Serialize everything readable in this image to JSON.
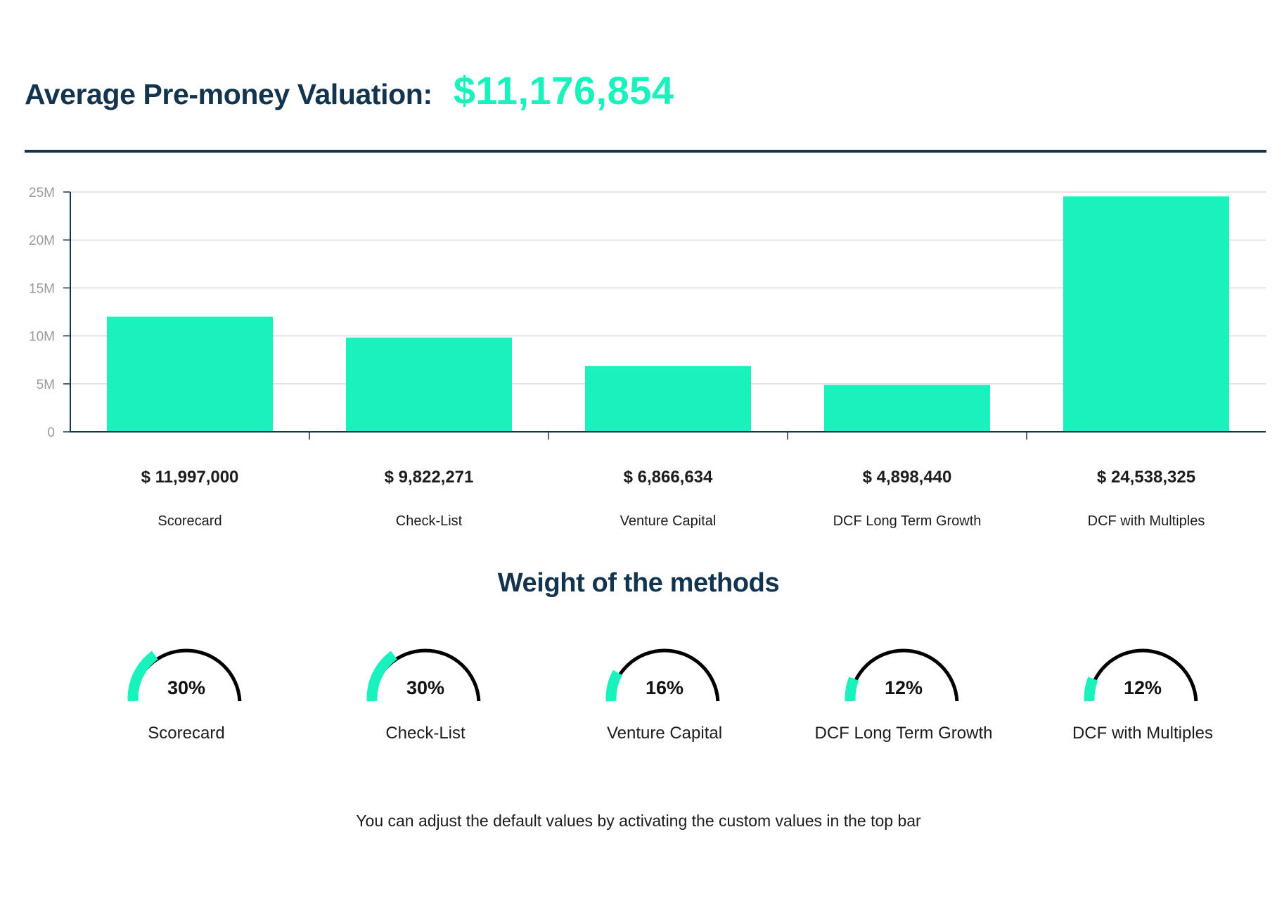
{
  "header": {
    "label": "Average Pre-money Valuation:",
    "value": "$11,176,854"
  },
  "colors": {
    "accent": "#19f2bd",
    "navy": "#12344e",
    "gauge_track": "#000000"
  },
  "chart_data": {
    "type": "bar",
    "categories": [
      "Scorecard",
      "Check-List",
      "Venture Capital",
      "DCF Long Term Growth",
      "DCF with Multiples"
    ],
    "values": [
      11997000,
      9822271,
      6866634,
      4898440,
      24538325
    ],
    "value_labels": [
      "$ 11,997,000",
      "$ 9,822,271",
      "$ 6,866,634",
      "$ 4,898,440",
      "$ 24,538,325"
    ],
    "ylim": [
      0,
      25000000
    ],
    "yticks": [
      {
        "value": 0,
        "label": "0"
      },
      {
        "value": 5000000,
        "label": "5M"
      },
      {
        "value": 10000000,
        "label": "10M"
      },
      {
        "value": 15000000,
        "label": "15M"
      },
      {
        "value": 20000000,
        "label": "20M"
      },
      {
        "value": 25000000,
        "label": "25M"
      }
    ],
    "grid": true,
    "legend": "none"
  },
  "weights": {
    "title": "Weight of the methods",
    "items": [
      {
        "name": "Scorecard",
        "percent": 30,
        "label": "30%"
      },
      {
        "name": "Check-List",
        "percent": 30,
        "label": "30%"
      },
      {
        "name": "Venture Capital",
        "percent": 16,
        "label": "16%"
      },
      {
        "name": "DCF Long Term Growth",
        "percent": 12,
        "label": "12%"
      },
      {
        "name": "DCF with Multiples",
        "percent": 12,
        "label": "12%"
      }
    ]
  },
  "footer": {
    "note": "You can adjust the default values by activating the custom values in the top bar"
  }
}
